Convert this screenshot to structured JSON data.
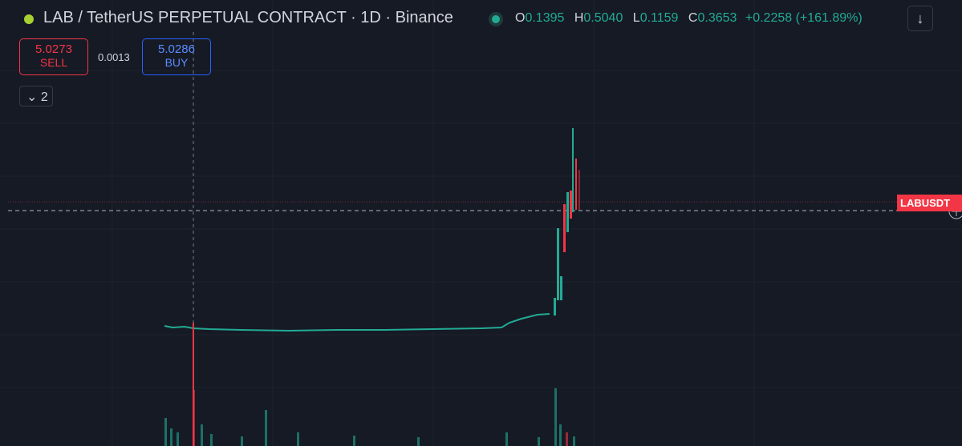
{
  "header": {
    "symbol": "LAB / TetherUS PERPETUAL CONTRACT · 1D · Binance",
    "ohlc": [
      {
        "label": "O",
        "value": "0.1395"
      },
      {
        "label": "H",
        "value": "0.5040"
      },
      {
        "label": "L",
        "value": "0.1159"
      },
      {
        "label": "C",
        "value": "0.3653"
      }
    ],
    "change": "+0.2258 (+161.89%)"
  },
  "trade": {
    "sell_price": "5.0273",
    "sell_label": "SELL",
    "spread": "0.0013",
    "buy_price": "5.0286",
    "buy_label": "BUY"
  },
  "indicators": {
    "count": "2"
  },
  "price_label": "LABUSDT"
}
